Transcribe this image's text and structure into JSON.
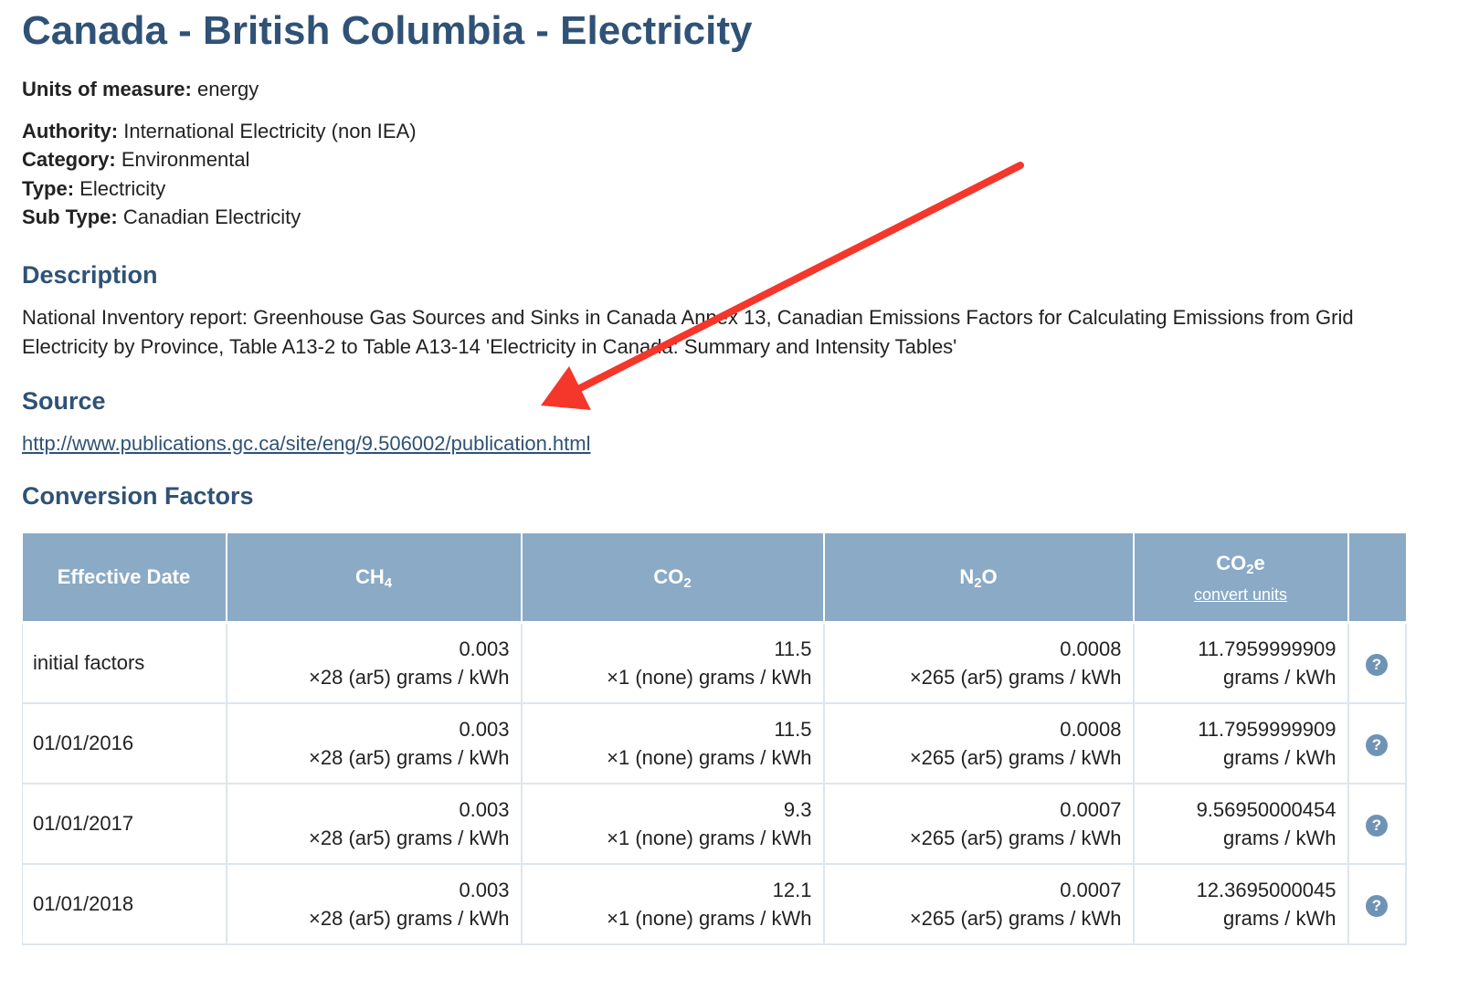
{
  "page": {
    "title": "Canada - British Columbia - Electricity",
    "units_label": "Units of measure:",
    "units_value": "energy",
    "meta": [
      {
        "label": "Authority:",
        "value": "International Electricity (non IEA)"
      },
      {
        "label": "Category:",
        "value": "Environmental"
      },
      {
        "label": "Type:",
        "value": "Electricity"
      },
      {
        "label": "Sub Type:",
        "value": "Canadian Electricity"
      }
    ]
  },
  "description": {
    "heading": "Description",
    "text": "National Inventory report: Greenhouse Gas Sources and Sinks in Canada Annex 13, Canadian Emissions Factors for Calculating Emissions from Grid Electricity by Province, Table A13-2 to Table A13-14 'Electricity in Canada: Summary and Intensity Tables'"
  },
  "source": {
    "heading": "Source",
    "link": "http://www.publications.gc.ca/site/eng/9.506002/publication.html"
  },
  "conversion": {
    "heading": "Conversion Factors",
    "columns": {
      "date": "Effective Date",
      "ch4": {
        "base": "CH",
        "sub": "4"
      },
      "co2": {
        "base": "CO",
        "sub": "2"
      },
      "n2o": {
        "base": "N",
        "sub": "2",
        "tail": "O"
      },
      "co2e": {
        "base": "CO",
        "sub": "2",
        "tail": "e",
        "link": "convert units"
      }
    },
    "rows": [
      {
        "date": "initial factors",
        "ch4": "0.003",
        "ch4_unit": "×28 (ar5) grams / kWh",
        "co2": "11.5",
        "co2_unit": "×1 (none) grams / kWh",
        "n2o": "0.0008",
        "n2o_unit": "×265 (ar5) grams / kWh",
        "co2e": "11.7959999909",
        "co2e_unit": "grams / kWh",
        "help": "?"
      },
      {
        "date": "01/01/2016",
        "ch4": "0.003",
        "ch4_unit": "×28 (ar5) grams / kWh",
        "co2": "11.5",
        "co2_unit": "×1 (none) grams / kWh",
        "n2o": "0.0008",
        "n2o_unit": "×265 (ar5) grams / kWh",
        "co2e": "11.7959999909",
        "co2e_unit": "grams / kWh",
        "help": "?"
      },
      {
        "date": "01/01/2017",
        "ch4": "0.003",
        "ch4_unit": "×28 (ar5) grams / kWh",
        "co2": "9.3",
        "co2_unit": "×1 (none) grams / kWh",
        "n2o": "0.0007",
        "n2o_unit": "×265 (ar5) grams / kWh",
        "co2e": "9.56950000454",
        "co2e_unit": "grams / kWh",
        "help": "?"
      },
      {
        "date": "01/01/2018",
        "ch4": "0.003",
        "ch4_unit": "×28 (ar5) grams / kWh",
        "co2": "12.1",
        "co2_unit": "×1 (none) grams / kWh",
        "n2o": "0.0007",
        "n2o_unit": "×265 (ar5) grams / kWh",
        "co2e": "12.3695000045",
        "co2e_unit": "grams / kWh",
        "help": "?"
      }
    ]
  },
  "annotation": {
    "icon": "red-arrow-icon",
    "color": "#f5362b"
  },
  "colors": {
    "heading": "#2f5276",
    "table_header": "#8aaac6",
    "help_icon": "#6f93b4"
  }
}
